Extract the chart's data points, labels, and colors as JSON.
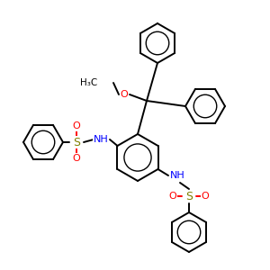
{
  "bond_color": "#000000",
  "S_color": "#808000",
  "O_color": "#ff0000",
  "N_color": "#0000ff",
  "lw": 1.4,
  "lw_inner": 1.0,
  "figsize": [
    3.0,
    3.0
  ],
  "dpi": 100,
  "xlim": [
    0,
    300
  ],
  "ylim": [
    0,
    300
  ]
}
